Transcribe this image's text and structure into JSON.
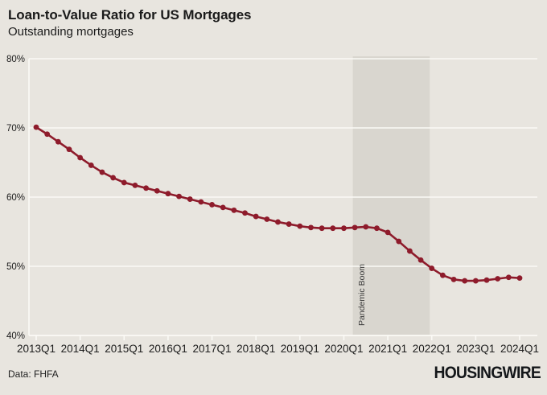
{
  "header": {
    "title": "Loan-to-Value Ratio for US Mortgages",
    "subtitle": "Outstanding mortgages"
  },
  "footer": {
    "source": "Data: FHFA",
    "logo": "HOUSINGWIRE"
  },
  "colors": {
    "background": "#e8e5df",
    "band": "#d9d6cf",
    "grid": "#fbfaf6",
    "line": "#8e1b2b",
    "marker": "#8e1b2b",
    "axis_text": "#1c1c1c",
    "band_label_text": "#3a3a3a"
  },
  "chart_data": {
    "type": "line",
    "title": "Loan-to-Value Ratio for US Mortgages",
    "subtitle": "Outstanding mortgages",
    "xlabel": "",
    "ylabel": "",
    "ylim": [
      40,
      80
    ],
    "yticks": [
      40,
      50,
      60,
      70,
      80
    ],
    "ytick_labels": [
      "40%",
      "50%",
      "60%",
      "70%",
      "80%"
    ],
    "xticks_every": 4,
    "grid": true,
    "legend": "none",
    "x": [
      "2013Q1",
      "2013Q2",
      "2013Q3",
      "2013Q4",
      "2014Q1",
      "2014Q2",
      "2014Q3",
      "2014Q4",
      "2015Q1",
      "2015Q2",
      "2015Q3",
      "2015Q4",
      "2016Q1",
      "2016Q2",
      "2016Q3",
      "2016Q4",
      "2017Q1",
      "2017Q2",
      "2017Q3",
      "2017Q4",
      "2018Q1",
      "2018Q2",
      "2018Q3",
      "2018Q4",
      "2019Q1",
      "2019Q2",
      "2019Q3",
      "2019Q4",
      "2020Q1",
      "2020Q2",
      "2020Q3",
      "2020Q4",
      "2021Q1",
      "2021Q2",
      "2021Q3",
      "2021Q4",
      "2022Q1",
      "2022Q2",
      "2022Q3",
      "2022Q4",
      "2023Q1",
      "2023Q2",
      "2023Q3",
      "2023Q4",
      "2024Q1"
    ],
    "values": [
      70.1,
      69.1,
      68.0,
      66.9,
      65.7,
      64.6,
      63.6,
      62.8,
      62.1,
      61.7,
      61.3,
      60.9,
      60.5,
      60.1,
      59.7,
      59.3,
      58.9,
      58.5,
      58.1,
      57.7,
      57.2,
      56.8,
      56.4,
      56.1,
      55.8,
      55.6,
      55.5,
      55.5,
      55.5,
      55.6,
      55.7,
      55.5,
      54.9,
      53.6,
      52.2,
      50.9,
      49.7,
      48.7,
      48.1,
      47.9,
      47.9,
      48.0,
      48.2,
      48.4,
      48.3
    ],
    "band": {
      "from": "2020Q2",
      "to": "2022Q1",
      "label": "Pandemic Boom"
    }
  }
}
